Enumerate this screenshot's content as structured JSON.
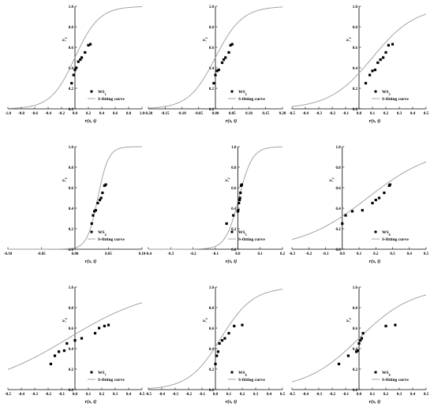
{
  "figure": {
    "background": "#ffffff",
    "curve_color": "#9a9a9a",
    "point_color": "#000000",
    "axis_color": "#000000"
  },
  "chart_data": [
    {
      "type": "scatter",
      "xlabel": "r(s, t)",
      "ylabel": "y",
      "ylabel_sub": "1",
      "xlim": [
        -1.0,
        1.0
      ],
      "ylim": [
        0.0,
        1.0
      ],
      "xticks": [
        -1.0,
        -0.8,
        -0.6,
        -0.4,
        -0.2,
        0.0,
        0.2,
        0.4,
        0.6,
        0.8,
        1.0
      ],
      "xtick_labels": [
        "-1.0",
        "-0.8",
        "-0.6",
        "-0.4",
        "-0.2",
        "0.0",
        "0.2",
        "0.4",
        "0.6",
        "0.8",
        "1.0"
      ],
      "yticks": [
        0.0,
        0.2,
        0.4,
        0.6,
        0.8,
        1.0
      ],
      "ytick_labels": [
        "0.0",
        "0.2",
        "0.4",
        "0.6",
        "0.8",
        "1.0"
      ],
      "legend_position": "bottom-right",
      "series": [
        {
          "name": "WS",
          "name_sub": "1",
          "kind": "points",
          "x": [
            -0.05,
            -0.02,
            0.0,
            0.02,
            0.05,
            0.08,
            0.1,
            0.15,
            0.2,
            0.23
          ],
          "y": [
            0.25,
            0.33,
            0.38,
            0.4,
            0.46,
            0.48,
            0.5,
            0.55,
            0.62,
            0.63
          ]
        },
        {
          "name": "S-fitting curve",
          "kind": "curve",
          "model": "logistic",
          "center": 0.0,
          "scale": 0.18
        }
      ]
    },
    {
      "type": "scatter",
      "xlabel": "r(s, t)",
      "ylabel": "y",
      "ylabel_sub": "1",
      "xlim": [
        -0.2,
        0.2
      ],
      "ylim": [
        0.0,
        1.0
      ],
      "xticks": [
        -0.2,
        -0.15,
        -0.1,
        -0.05,
        0.0,
        0.05,
        0.1,
        0.15,
        0.2
      ],
      "xtick_labels": [
        "-0.20",
        "-0.15",
        "-0.10",
        "-0.05",
        "0.00",
        "0.05",
        "0.10",
        "0.15",
        "0.20"
      ],
      "yticks": [
        0.0,
        0.2,
        0.4,
        0.6,
        0.8,
        1.0
      ],
      "ytick_labels": [
        "0.0",
        "0.2",
        "0.4",
        "0.6",
        "0.8",
        "1.0"
      ],
      "legend_position": "bottom-right",
      "series": [
        {
          "name": "WS",
          "name_sub": "2",
          "kind": "points",
          "x": [
            -0.005,
            0.0,
            0.005,
            0.01,
            0.02,
            0.025,
            0.03,
            0.04,
            0.045,
            0.05
          ],
          "y": [
            0.25,
            0.33,
            0.37,
            0.38,
            0.45,
            0.48,
            0.5,
            0.55,
            0.62,
            0.63
          ]
        },
        {
          "name": "S-fitting curve",
          "kind": "curve",
          "model": "logistic",
          "center": 0.0,
          "scale": 0.04
        }
      ]
    },
    {
      "type": "scatter",
      "xlabel": "r(s, t)",
      "ylabel": "y",
      "ylabel_sub": "1",
      "xlim": [
        -0.5,
        0.5
      ],
      "ylim": [
        0.0,
        1.0
      ],
      "xticks": [
        -0.5,
        -0.4,
        -0.3,
        -0.2,
        -0.1,
        0.0,
        0.1,
        0.2,
        0.3,
        0.4,
        0.5
      ],
      "xtick_labels": [
        "-0.5",
        "-0.4",
        "-0.3",
        "-0.2",
        "-0.1",
        "0.0",
        "0.1",
        "0.2",
        "0.3",
        "0.4",
        "0.5"
      ],
      "yticks": [
        0.0,
        0.2,
        0.4,
        0.6,
        0.8,
        1.0
      ],
      "ytick_labels": [
        "0.0",
        "0.2",
        "0.4",
        "0.6",
        "0.8",
        "1.0"
      ],
      "legend_position": "bottom-right",
      "series": [
        {
          "name": "WS",
          "name_sub": "3",
          "kind": "points",
          "x": [
            0.05,
            0.08,
            0.1,
            0.12,
            0.14,
            0.16,
            0.18,
            0.2,
            0.22,
            0.25
          ],
          "y": [
            0.25,
            0.33,
            0.37,
            0.38,
            0.45,
            0.48,
            0.5,
            0.55,
            0.62,
            0.63
          ]
        },
        {
          "name": "S-fitting curve",
          "kind": "curve",
          "model": "logistic",
          "center": 0.1,
          "scale": 0.16
        }
      ]
    },
    {
      "type": "scatter",
      "xlabel": "r(s, t)",
      "ylabel": "y",
      "ylabel_sub": "1",
      "xlim": [
        -0.1,
        0.1
      ],
      "ylim": [
        0.0,
        1.0
      ],
      "xticks": [
        -0.1,
        -0.05,
        0.0,
        0.05,
        0.1
      ],
      "xtick_labels": [
        "-0.10",
        "-0.05",
        "0.00",
        "0.05",
        "0.10"
      ],
      "yticks": [
        0.0,
        0.2,
        0.4,
        0.6,
        0.8,
        1.0
      ],
      "ytick_labels": [
        "0.0",
        "0.2",
        "0.4",
        "0.6",
        "0.8",
        "1.0"
      ],
      "legend_position": "bottom-right",
      "series": [
        {
          "name": "WS",
          "name_sub": "4",
          "kind": "points",
          "x": [
            0.025,
            0.027,
            0.029,
            0.031,
            0.034,
            0.037,
            0.039,
            0.041,
            0.044,
            0.046
          ],
          "y": [
            0.25,
            0.33,
            0.37,
            0.38,
            0.45,
            0.48,
            0.5,
            0.55,
            0.62,
            0.63
          ]
        },
        {
          "name": "S-fitting curve",
          "kind": "curve",
          "model": "logistic",
          "center": 0.034,
          "scale": 0.008
        }
      ]
    },
    {
      "type": "scatter",
      "xlabel": "r(s, t)",
      "ylabel": "y",
      "ylabel_sub": "1",
      "xlim": [
        -0.4,
        0.2
      ],
      "ylim": [
        0.0,
        1.0
      ],
      "xticks": [
        -0.4,
        -0.3,
        -0.2,
        -0.1,
        0.0,
        0.1,
        0.2
      ],
      "xtick_labels": [
        "-0.4",
        "-0.3",
        "-0.2",
        "-0.1",
        "0.0",
        "0.1",
        "0.2"
      ],
      "yticks": [
        0.0,
        0.2,
        0.4,
        0.6,
        0.8,
        1.0
      ],
      "ytick_labels": [
        "0.0",
        "0.2",
        "0.4",
        "0.6",
        "0.8",
        "1.0"
      ],
      "legend_position": "bottom-right",
      "series": [
        {
          "name": "WS",
          "name_sub": "5",
          "kind": "points",
          "x": [
            -0.05,
            -0.02,
            0.0,
            0.002,
            0.005,
            0.008,
            0.01,
            0.012,
            0.015,
            0.018
          ],
          "y": [
            0.25,
            0.33,
            0.37,
            0.38,
            0.45,
            0.48,
            0.5,
            0.55,
            0.62,
            0.63
          ]
        },
        {
          "name": "S-fitting curve",
          "kind": "curve",
          "model": "logistic",
          "center": 0.005,
          "scale": 0.03
        }
      ]
    },
    {
      "type": "scatter",
      "xlabel": "r(s, t)",
      "ylabel": "y",
      "ylabel_sub": "1",
      "xlim": [
        -0.3,
        0.5
      ],
      "ylim": [
        0.0,
        1.0
      ],
      "xticks": [
        -0.3,
        -0.2,
        -0.1,
        0.0,
        0.1,
        0.2,
        0.3,
        0.4,
        0.5
      ],
      "xtick_labels": [
        "-0.3",
        "-0.2",
        "-0.1",
        "0.0",
        "0.1",
        "0.2",
        "0.3",
        "0.4",
        "0.5"
      ],
      "yticks": [
        0.0,
        0.2,
        0.4,
        0.6,
        0.8,
        1.0
      ],
      "ytick_labels": [
        "0.0",
        "0.2",
        "0.4",
        "0.6",
        "0.8",
        "1.0"
      ],
      "legend_position": "bottom-right",
      "series": [
        {
          "name": "WS",
          "name_sub": "6",
          "kind": "points",
          "x": [
            0.0,
            0.02,
            0.06,
            0.12,
            0.18,
            0.2,
            0.22,
            0.25,
            0.28,
            0.285
          ],
          "y": [
            0.25,
            0.33,
            0.37,
            0.38,
            0.45,
            0.48,
            0.5,
            0.55,
            0.62,
            0.63
          ]
        },
        {
          "name": "S-fitting curve",
          "kind": "curve",
          "model": "logistic",
          "center": 0.15,
          "scale": 0.2
        }
      ]
    },
    {
      "type": "scatter",
      "xlabel": "r(s, t)",
      "ylabel": "y",
      "ylabel_sub": "1",
      "xlim": [
        -0.5,
        0.5
      ],
      "ylim": [
        0.0,
        1.0
      ],
      "xticks": [
        -0.5,
        -0.4,
        -0.3,
        -0.2,
        -0.1,
        0.0,
        0.1,
        0.2,
        0.3,
        0.4,
        0.5
      ],
      "xtick_labels": [
        "-0.5",
        "-0.4",
        "-0.3",
        "-0.2",
        "-0.1",
        "0.0",
        "0.1",
        "0.2",
        "0.3",
        "0.4",
        "0.5"
      ],
      "yticks": [
        0.0,
        0.2,
        0.4,
        0.6,
        0.8,
        1.0
      ],
      "ytick_labels": [
        "0.0",
        "0.2",
        "0.4",
        "0.6",
        "0.8",
        "1.0"
      ],
      "legend_position": "bottom-right",
      "series": [
        {
          "name": "WS",
          "name_sub": "7",
          "kind": "points",
          "x": [
            -0.18,
            -0.15,
            -0.12,
            -0.08,
            -0.06,
            0.0,
            0.05,
            0.15,
            0.18,
            0.22,
            0.25
          ],
          "y": [
            0.25,
            0.33,
            0.37,
            0.38,
            0.45,
            0.48,
            0.5,
            0.55,
            0.6,
            0.62,
            0.63
          ]
        },
        {
          "name": "S-fitting curve",
          "kind": "curve",
          "model": "logistic",
          "center": -0.05,
          "scale": 0.32
        }
      ]
    },
    {
      "type": "scatter",
      "xlabel": "r(s, t)",
      "ylabel": "y",
      "ylabel_sub": "1",
      "xlim": [
        -0.5,
        0.5
      ],
      "ylim": [
        0.0,
        1.0
      ],
      "xticks": [
        -0.5,
        -0.4,
        -0.3,
        -0.2,
        -0.1,
        0.0,
        0.1,
        0.2,
        0.3,
        0.4,
        0.5
      ],
      "xtick_labels": [
        "-0.5",
        "-0.4",
        "-0.3",
        "-0.2",
        "-0.1",
        "0.0",
        "0.1",
        "0.2",
        "0.3",
        "0.4",
        "0.5"
      ],
      "yticks": [
        0.0,
        0.2,
        0.4,
        0.6,
        0.8,
        1.0
      ],
      "ytick_labels": [
        "0.0",
        "0.2",
        "0.4",
        "0.6",
        "0.8",
        "1.0"
      ],
      "legend_position": "bottom-right",
      "series": [
        {
          "name": "WS",
          "name_sub": "8",
          "kind": "points",
          "x": [
            0.0,
            0.01,
            0.02,
            0.03,
            0.05,
            0.07,
            0.1,
            0.14,
            0.2
          ],
          "y": [
            0.25,
            0.33,
            0.37,
            0.45,
            0.48,
            0.5,
            0.55,
            0.62,
            0.63
          ]
        },
        {
          "name": "S-fitting curve",
          "kind": "curve",
          "model": "logistic",
          "center": 0.04,
          "scale": 0.12
        }
      ]
    },
    {
      "type": "scatter",
      "xlabel": "r(s, t)",
      "ylabel": "y",
      "ylabel_sub": "1",
      "xlim": [
        -0.5,
        0.5
      ],
      "ylim": [
        0.0,
        1.0
      ],
      "xticks": [
        -0.5,
        -0.4,
        -0.3,
        -0.2,
        -0.1,
        0.0,
        0.1,
        0.2,
        0.3,
        0.4,
        0.5
      ],
      "xtick_labels": [
        "-0.5",
        "-0.4",
        "-0.3",
        "-0.2",
        "-0.1",
        "0.0",
        "0.1",
        "0.2",
        "0.3",
        "0.4",
        "0.5"
      ],
      "yticks": [
        0.0,
        0.2,
        0.4,
        0.6,
        0.8,
        1.0
      ],
      "ytick_labels": [
        "0.0",
        "0.2",
        "0.4",
        "0.6",
        "0.8",
        "1.0"
      ],
      "legend_position": "bottom-right",
      "series": [
        {
          "name": "WS",
          "name_sub": "9",
          "kind": "points",
          "x": [
            -0.15,
            -0.08,
            -0.02,
            -0.01,
            0.0,
            0.01,
            0.02,
            0.03,
            0.2,
            0.27
          ],
          "y": [
            0.25,
            0.33,
            0.37,
            0.38,
            0.45,
            0.48,
            0.5,
            0.55,
            0.62,
            0.63
          ]
        },
        {
          "name": "S-fitting curve",
          "kind": "curve",
          "model": "logistic",
          "center": 0.0,
          "scale": 0.2
        }
      ]
    }
  ]
}
